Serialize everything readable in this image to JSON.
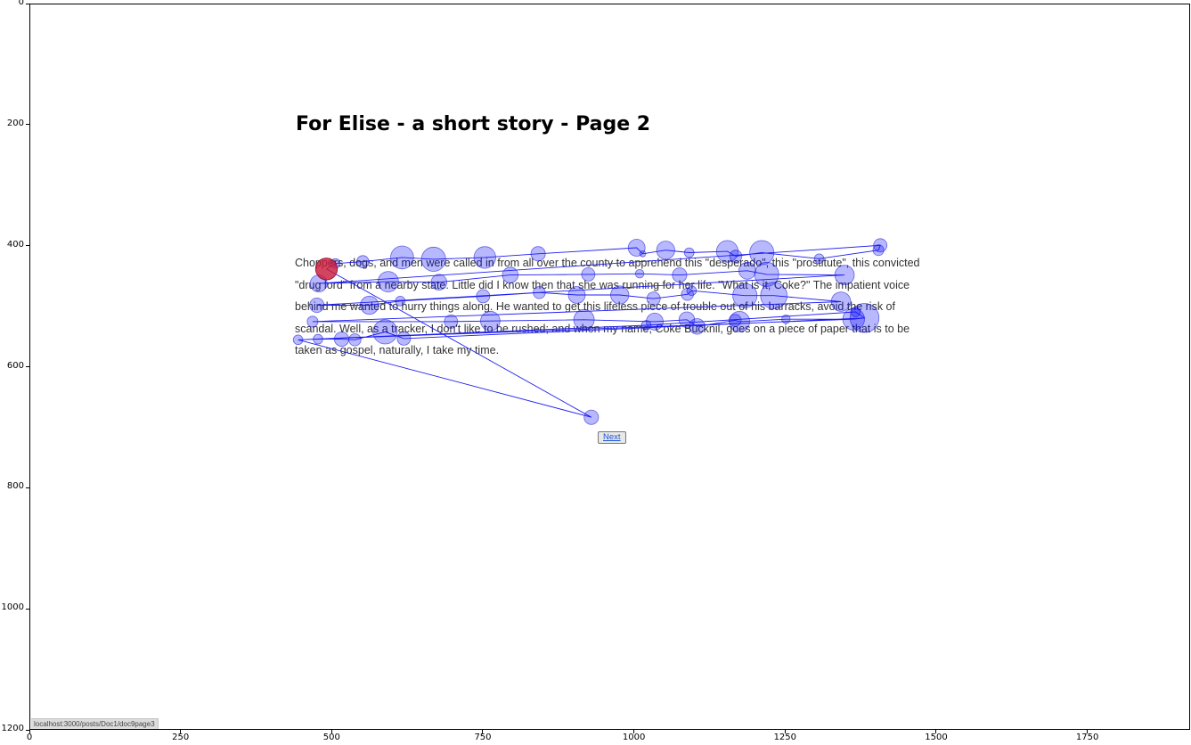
{
  "page": {
    "title": "For Elise - a short story - Page 2",
    "body": "Choppers, dogs, and men were called in from all over the county to apprehend this \"desperado\", this \"prostitute\", this convicted \"drug lord\" from a nearby state. Little did I know then that she was running for her life. \"What is it, Coke?\" The impatient voice behind me wanted to hurry things along. He wanted to get this lifeless piece of trouble out of his barracks, avoid the risk of scandal. Well, as a tracker, I don't like to be rushed; and when my name, Coke Bucknil, goes on a piece of paper that is to be taken as gospel, naturally, I take my time.",
    "next_label": "Next",
    "status_url": "localhost:3000/posts/Doc1/doc9page3"
  },
  "axes": {
    "x_ticks": [
      "0",
      "250",
      "500",
      "750",
      "1000",
      "1250",
      "1500",
      "1750"
    ],
    "y_ticks": [
      "0",
      "200",
      "400",
      "600",
      "800",
      "1000",
      "1200"
    ],
    "xlim": [
      0,
      1920
    ],
    "ylim": [
      1200,
      0
    ]
  },
  "colors": {
    "fixation_fill": "rgba(0,0,255,0.28)",
    "fixation_stroke": "rgba(0,0,200,0.55)",
    "saccade_line": "#1c1cf0",
    "first_fixation": "rgba(220,30,40,0.75)"
  },
  "gaze": {
    "fixations": [
      [
        490,
        437,
        18
      ],
      [
        505,
        428,
        8
      ],
      [
        550,
        425,
        10
      ],
      [
        615,
        418,
        19
      ],
      [
        667,
        421,
        20
      ],
      [
        752,
        418,
        18
      ],
      [
        840,
        412,
        12
      ],
      [
        1003,
        402,
        14
      ],
      [
        1013,
        412,
        5
      ],
      [
        1051,
        406,
        15
      ],
      [
        1090,
        410,
        8
      ],
      [
        1153,
        408,
        18
      ],
      [
        1167,
        416,
        10
      ],
      [
        1210,
        410,
        20
      ],
      [
        1305,
        420,
        8
      ],
      [
        1403,
        406,
        9
      ],
      [
        1406,
        398,
        11
      ],
      [
        1186,
        440,
        14
      ],
      [
        1218,
        446,
        20
      ],
      [
        1347,
        447,
        16
      ],
      [
        1074,
        447,
        12
      ],
      [
        1008,
        445,
        7
      ],
      [
        923,
        446,
        11
      ],
      [
        794,
        447,
        13
      ],
      [
        676,
        459,
        13
      ],
      [
        592,
        458,
        17
      ],
      [
        477,
        461,
        14
      ],
      [
        612,
        490,
        8
      ],
      [
        561,
        497,
        15
      ],
      [
        474,
        497,
        12
      ],
      [
        749,
        482,
        11
      ],
      [
        842,
        476,
        10
      ],
      [
        904,
        480,
        14
      ],
      [
        975,
        480,
        15
      ],
      [
        1031,
        486,
        11
      ],
      [
        1087,
        479,
        10
      ],
      [
        1094,
        473,
        8
      ],
      [
        1182,
        481,
        20
      ],
      [
        1230,
        481,
        22
      ],
      [
        1341,
        491,
        16
      ],
      [
        467,
        524,
        9
      ],
      [
        696,
        524,
        11
      ],
      [
        761,
        523,
        16
      ],
      [
        916,
        521,
        17
      ],
      [
        1033,
        524,
        14
      ],
      [
        1086,
        521,
        13
      ],
      [
        1103,
        532,
        13
      ],
      [
        1166,
        522,
        10
      ],
      [
        1173,
        524,
        17
      ],
      [
        1250,
        520,
        7
      ],
      [
        1362,
        520,
        18
      ],
      [
        1380,
        518,
        24
      ],
      [
        1365,
        508,
        8
      ],
      [
        1019,
        530,
        8
      ],
      [
        587,
        541,
        20
      ],
      [
        618,
        552,
        11
      ],
      [
        537,
        554,
        10
      ],
      [
        515,
        553,
        12
      ],
      [
        476,
        553,
        8
      ],
      [
        443,
        554,
        8
      ],
      [
        928,
        682,
        12
      ]
    ],
    "path": [
      [
        490,
        437
      ],
      [
        505,
        428
      ],
      [
        550,
        425
      ],
      [
        615,
        418
      ],
      [
        667,
        421
      ],
      [
        752,
        418
      ],
      [
        840,
        412
      ],
      [
        1003,
        402
      ],
      [
        1013,
        412
      ],
      [
        1051,
        406
      ],
      [
        1090,
        410
      ],
      [
        1153,
        408
      ],
      [
        1167,
        416
      ],
      [
        1210,
        410
      ],
      [
        1305,
        420
      ],
      [
        1403,
        406
      ],
      [
        1406,
        398
      ],
      [
        477,
        461
      ],
      [
        592,
        458
      ],
      [
        676,
        459
      ],
      [
        794,
        447
      ],
      [
        923,
        446
      ],
      [
        1008,
        445
      ],
      [
        1074,
        447
      ],
      [
        1186,
        440
      ],
      [
        1218,
        446
      ],
      [
        1347,
        447
      ],
      [
        474,
        497
      ],
      [
        561,
        497
      ],
      [
        612,
        490
      ],
      [
        749,
        482
      ],
      [
        842,
        476
      ],
      [
        904,
        480
      ],
      [
        975,
        480
      ],
      [
        1031,
        486
      ],
      [
        1087,
        479
      ],
      [
        1094,
        473
      ],
      [
        1182,
        481
      ],
      [
        1230,
        481
      ],
      [
        1341,
        491
      ],
      [
        467,
        524
      ],
      [
        696,
        524
      ],
      [
        761,
        523
      ],
      [
        916,
        521
      ],
      [
        1033,
        524
      ],
      [
        1086,
        521
      ],
      [
        1103,
        532
      ],
      [
        1166,
        522
      ],
      [
        1173,
        524
      ],
      [
        1250,
        520
      ],
      [
        1362,
        520
      ],
      [
        1380,
        518
      ],
      [
        1365,
        508
      ],
      [
        1019,
        530
      ],
      [
        443,
        554
      ],
      [
        476,
        553
      ],
      [
        515,
        553
      ],
      [
        537,
        554
      ],
      [
        587,
        541
      ],
      [
        618,
        552
      ],
      [
        1380,
        518
      ],
      [
        1362,
        520
      ],
      [
        443,
        554
      ],
      [
        928,
        682
      ],
      [
        490,
        437
      ]
    ]
  }
}
